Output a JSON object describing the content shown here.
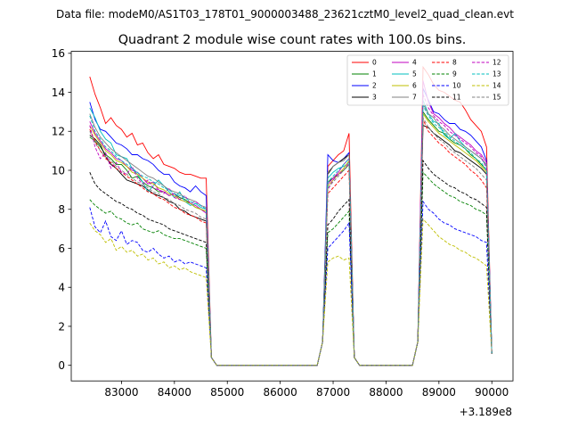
{
  "suptitle": "Data file: modeM0/AS1T03_178T01_9000003488_23621cztM0_level2_quad_clean.evt",
  "chart_data": {
    "type": "line",
    "title": "Quadrant 2 module wise count rates with 100.0s bins.",
    "xlabel": "",
    "ylabel": "",
    "x_offset_label": "+3.189e8",
    "x_offset": 318900000,
    "xlim": [
      82050,
      90400
    ],
    "ylim": [
      -0.8,
      16.1
    ],
    "xticks": [
      83000,
      84000,
      85000,
      86000,
      87000,
      88000,
      89000,
      90000
    ],
    "yticks": [
      0,
      2,
      4,
      6,
      8,
      10,
      12,
      14,
      16
    ],
    "legend_position": "top-right",
    "segments": [
      {
        "start": 82400,
        "end": 84600,
        "n": 23,
        "post_zero_until": 86700
      },
      {
        "start": 86900,
        "end": 87300,
        "n": 5,
        "post_zero_until": 88500
      },
      {
        "start": 88700,
        "end": 89900,
        "n": 13,
        "post_zero_until": null
      }
    ],
    "series": [
      {
        "name": "0",
        "color": "#ff0000",
        "style": "solid",
        "values": [
          [
            14.8,
            13.9,
            13.2,
            12.4,
            12.7,
            12.3,
            12.1,
            11.7,
            11.9,
            11.3,
            11.4,
            10.9,
            10.6,
            10.8,
            10.3,
            10.2,
            10.1,
            9.9,
            9.8,
            9.8,
            9.7,
            9.6,
            9.6
          ],
          [
            10.2,
            10.5,
            10.8,
            11.0,
            11.9
          ],
          [
            15.3,
            14.9,
            14.4,
            14.1,
            14.0,
            13.8,
            13.6,
            13.5,
            13.1,
            12.6,
            12.3,
            12.0,
            11.2
          ]
        ]
      },
      {
        "name": "1",
        "color": "#008000",
        "style": "solid",
        "values": [
          [
            11.7,
            11.5,
            11.2,
            10.8,
            10.6,
            10.3,
            10.3,
            10.0,
            9.6,
            9.7,
            9.4,
            9.2,
            9.1,
            8.9,
            8.9,
            8.7,
            8.8,
            8.6,
            8.5,
            8.3,
            8.1,
            8.0,
            7.9
          ],
          [
            9.4,
            9.6,
            9.8,
            10.0,
            10.3
          ],
          [
            13.0,
            12.6,
            12.3,
            12.0,
            11.9,
            11.6,
            11.4,
            11.3,
            11.1,
            10.8,
            10.6,
            10.3,
            10.0
          ]
        ]
      },
      {
        "name": "2",
        "color": "#0000ff",
        "style": "solid",
        "values": [
          [
            13.5,
            12.6,
            12.1,
            12.0,
            11.7,
            11.4,
            11.3,
            11.1,
            10.8,
            10.8,
            10.6,
            10.5,
            10.3,
            10.0,
            9.8,
            9.8,
            9.4,
            9.2,
            9.1,
            8.9,
            9.2,
            8.9,
            8.7
          ],
          [
            10.8,
            10.5,
            10.4,
            10.6,
            10.9
          ],
          [
            14.2,
            13.6,
            13.0,
            12.9,
            12.6,
            12.4,
            12.4,
            12.1,
            12.0,
            11.8,
            11.5,
            11.2,
            10.5
          ]
        ]
      },
      {
        "name": "3",
        "color": "#000000",
        "style": "solid",
        "values": [
          [
            11.8,
            11.6,
            11.3,
            10.7,
            10.3,
            10.1,
            9.8,
            9.5,
            9.4,
            9.3,
            9.2,
            9.0,
            8.8,
            8.7,
            8.6,
            8.4,
            8.3,
            8.0,
            7.9,
            7.7,
            7.6,
            7.5,
            7.4
          ],
          [
            9.8,
            10.2,
            10.4,
            10.6,
            10.8
          ],
          [
            12.3,
            12.2,
            11.9,
            11.7,
            11.5,
            11.3,
            11.0,
            10.9,
            10.7,
            10.5,
            10.3,
            10.1,
            9.8
          ]
        ]
      },
      {
        "name": "4",
        "color": "#c000c0",
        "style": "solid",
        "values": [
          [
            12.5,
            11.9,
            11.5,
            11.1,
            10.9,
            10.6,
            10.5,
            10.2,
            10.0,
            9.9,
            9.6,
            9.3,
            9.4,
            9.0,
            8.9,
            8.7,
            8.8,
            8.5,
            8.4,
            8.3,
            8.2,
            8.0,
            7.8
          ],
          [
            9.3,
            9.6,
            9.9,
            10.3,
            10.6
          ],
          [
            14.6,
            13.5,
            12.9,
            12.7,
            12.4,
            12.2,
            11.9,
            11.7,
            11.5,
            11.3,
            11.0,
            10.8,
            10.4
          ]
        ]
      },
      {
        "name": "5",
        "color": "#00bfbf",
        "style": "solid",
        "values": [
          [
            13.2,
            12.7,
            12.0,
            11.6,
            11.4,
            10.8,
            10.7,
            10.6,
            10.1,
            9.8,
            9.4,
            8.9,
            9.2,
            9.5,
            9.2,
            8.9,
            8.6,
            8.9,
            8.4,
            8.2,
            8.3,
            8.1,
            8.0
          ],
          [
            9.6,
            9.9,
            10.1,
            10.2,
            10.4
          ],
          [
            13.6,
            12.9,
            12.5,
            12.4,
            11.8,
            11.6,
            11.9,
            11.5,
            11.2,
            11.0,
            10.8,
            10.6,
            10.2
          ]
        ]
      },
      {
        "name": "6",
        "color": "#bfbf00",
        "style": "solid",
        "values": [
          [
            12.3,
            11.8,
            11.4,
            11.0,
            10.8,
            10.5,
            10.4,
            10.2,
            9.9,
            9.8,
            9.6,
            9.4,
            9.3,
            9.1,
            9.0,
            8.8,
            8.7,
            8.5,
            8.4,
            8.3,
            8.1,
            8.0,
            7.9
          ],
          [
            9.2,
            9.5,
            9.8,
            10.1,
            10.5
          ],
          [
            12.9,
            12.5,
            12.2,
            11.9,
            11.7,
            11.5,
            11.3,
            11.1,
            10.9,
            10.7,
            10.5,
            10.2,
            9.9
          ]
        ]
      },
      {
        "name": "7",
        "color": "#808080",
        "style": "solid",
        "values": [
          [
            12.9,
            12.2,
            11.7,
            11.4,
            11.1,
            10.9,
            10.7,
            10.5,
            10.3,
            10.1,
            9.9,
            9.7,
            9.6,
            9.4,
            9.2,
            9.0,
            8.9,
            8.8,
            8.6,
            8.5,
            8.4,
            8.2,
            8.1
          ],
          [
            9.9,
            10.2,
            10.4,
            10.5,
            10.8
          ],
          [
            13.4,
            12.9,
            12.7,
            12.3,
            12.1,
            11.8,
            11.6,
            11.4,
            11.2,
            11.0,
            10.8,
            10.6,
            10.3
          ]
        ]
      },
      {
        "name": "8",
        "color": "#ff0000",
        "style": "dashed",
        "values": [
          [
            12.1,
            11.5,
            11.0,
            10.6,
            10.4,
            10.1,
            9.9,
            9.7,
            9.5,
            9.3,
            9.1,
            8.9,
            8.8,
            8.6,
            8.5,
            8.3,
            8.1,
            8.0,
            7.8,
            7.7,
            7.6,
            7.4,
            7.3
          ],
          [
            8.8,
            9.1,
            9.4,
            9.7,
            10.0
          ],
          [
            12.6,
            12.0,
            11.7,
            11.4,
            11.2,
            10.9,
            10.7,
            10.5,
            10.3,
            10.0,
            9.8,
            9.5,
            9.1
          ]
        ]
      },
      {
        "name": "9",
        "color": "#008000",
        "style": "dashed",
        "values": [
          [
            8.5,
            8.2,
            8.0,
            7.8,
            7.9,
            7.6,
            7.5,
            7.3,
            7.2,
            7.3,
            7.0,
            6.9,
            6.8,
            6.9,
            6.7,
            6.6,
            6.5,
            6.5,
            6.4,
            6.3,
            6.2,
            6.1,
            6.0
          ],
          [
            6.8,
            7.0,
            7.3,
            7.6,
            7.9
          ],
          [
            9.9,
            9.6,
            9.3,
            9.1,
            8.9,
            8.7,
            8.6,
            8.4,
            8.3,
            8.2,
            8.0,
            7.9,
            7.7
          ]
        ]
      },
      {
        "name": "10",
        "color": "#0000ff",
        "style": "dashed",
        "values": [
          [
            8.1,
            7.1,
            6.8,
            7.4,
            6.6,
            6.4,
            6.9,
            6.2,
            6.4,
            6.3,
            5.9,
            5.8,
            6.0,
            5.7,
            5.5,
            5.6,
            5.3,
            5.4,
            5.2,
            5.3,
            5.2,
            5.1,
            5.0
          ],
          [
            6.0,
            6.3,
            6.6,
            6.9,
            7.3
          ],
          [
            8.4,
            8.0,
            7.8,
            7.5,
            7.3,
            7.2,
            7.0,
            6.9,
            6.8,
            6.7,
            6.6,
            6.4,
            6.3
          ]
        ]
      },
      {
        "name": "11",
        "color": "#000000",
        "style": "dashed",
        "values": [
          [
            9.9,
            9.3,
            9.0,
            8.8,
            8.6,
            8.4,
            8.3,
            8.1,
            8.0,
            7.8,
            7.7,
            7.5,
            7.4,
            7.3,
            7.2,
            7.0,
            6.9,
            6.8,
            6.7,
            6.6,
            6.5,
            6.4,
            6.3
          ],
          [
            7.2,
            7.5,
            7.9,
            8.2,
            8.5
          ],
          [
            10.5,
            10.1,
            9.8,
            9.6,
            9.4,
            9.2,
            9.1,
            8.9,
            8.8,
            8.6,
            8.5,
            8.3,
            8.1
          ]
        ]
      },
      {
        "name": "12",
        "color": "#c000c0",
        "style": "dashed",
        "values": [
          [
            12.3,
            11.2,
            10.6,
            10.9,
            10.1,
            10.4,
            9.9,
            9.8,
            10.2,
            9.6,
            9.3,
            9.5,
            9.1,
            9.0,
            8.8,
            9.1,
            8.6,
            8.5,
            8.7,
            8.3,
            8.4,
            8.2,
            8.0
          ],
          [
            9.0,
            9.5,
            9.8,
            10.0,
            10.4
          ],
          [
            13.9,
            13.2,
            12.8,
            12.5,
            12.3,
            12.0,
            11.8,
            11.6,
            11.4,
            11.2,
            10.9,
            10.7,
            10.1
          ]
        ]
      },
      {
        "name": "13",
        "color": "#00bfbf",
        "style": "dashed",
        "values": [
          [
            12.8,
            12.0,
            11.6,
            11.2,
            11.0,
            10.7,
            10.5,
            10.3,
            10.1,
            9.9,
            9.7,
            9.6,
            9.4,
            9.3,
            9.1,
            9.0,
            8.8,
            8.7,
            8.6,
            8.4,
            8.3,
            8.2,
            8.0
          ],
          [
            9.4,
            9.7,
            10.0,
            10.3,
            10.6
          ],
          [
            13.3,
            12.8,
            12.4,
            12.2,
            12.0,
            11.7,
            11.5,
            11.3,
            11.1,
            10.9,
            10.6,
            10.4,
            10.0
          ]
        ]
      },
      {
        "name": "14",
        "color": "#bfbf00",
        "style": "dashed",
        "values": [
          [
            7.3,
            6.9,
            6.7,
            6.3,
            6.5,
            5.9,
            6.1,
            5.8,
            5.9,
            5.6,
            5.7,
            5.4,
            5.5,
            5.2,
            5.3,
            5.0,
            5.1,
            4.9,
            5.0,
            4.8,
            4.7,
            4.6,
            4.5
          ],
          [
            5.3,
            5.5,
            5.6,
            5.4,
            5.5
          ],
          [
            7.5,
            7.2,
            6.9,
            6.6,
            6.4,
            6.2,
            6.1,
            5.9,
            5.8,
            5.6,
            5.5,
            5.3,
            5.1
          ]
        ]
      },
      {
        "name": "15",
        "color": "#808080",
        "style": "dashed",
        "values": [
          [
            12.0,
            11.4,
            11.0,
            10.7,
            10.5,
            10.2,
            10.0,
            9.8,
            9.6,
            9.4,
            9.3,
            9.1,
            8.9,
            8.8,
            8.6,
            8.5,
            8.3,
            8.2,
            8.0,
            7.9,
            7.8,
            7.6,
            7.5
          ],
          [
            9.1,
            9.4,
            9.7,
            10.0,
            10.3
          ],
          [
            12.7,
            12.2,
            11.9,
            11.6,
            11.4,
            11.1,
            10.9,
            10.7,
            10.5,
            10.3,
            10.1,
            9.8,
            9.5
          ]
        ]
      }
    ]
  }
}
